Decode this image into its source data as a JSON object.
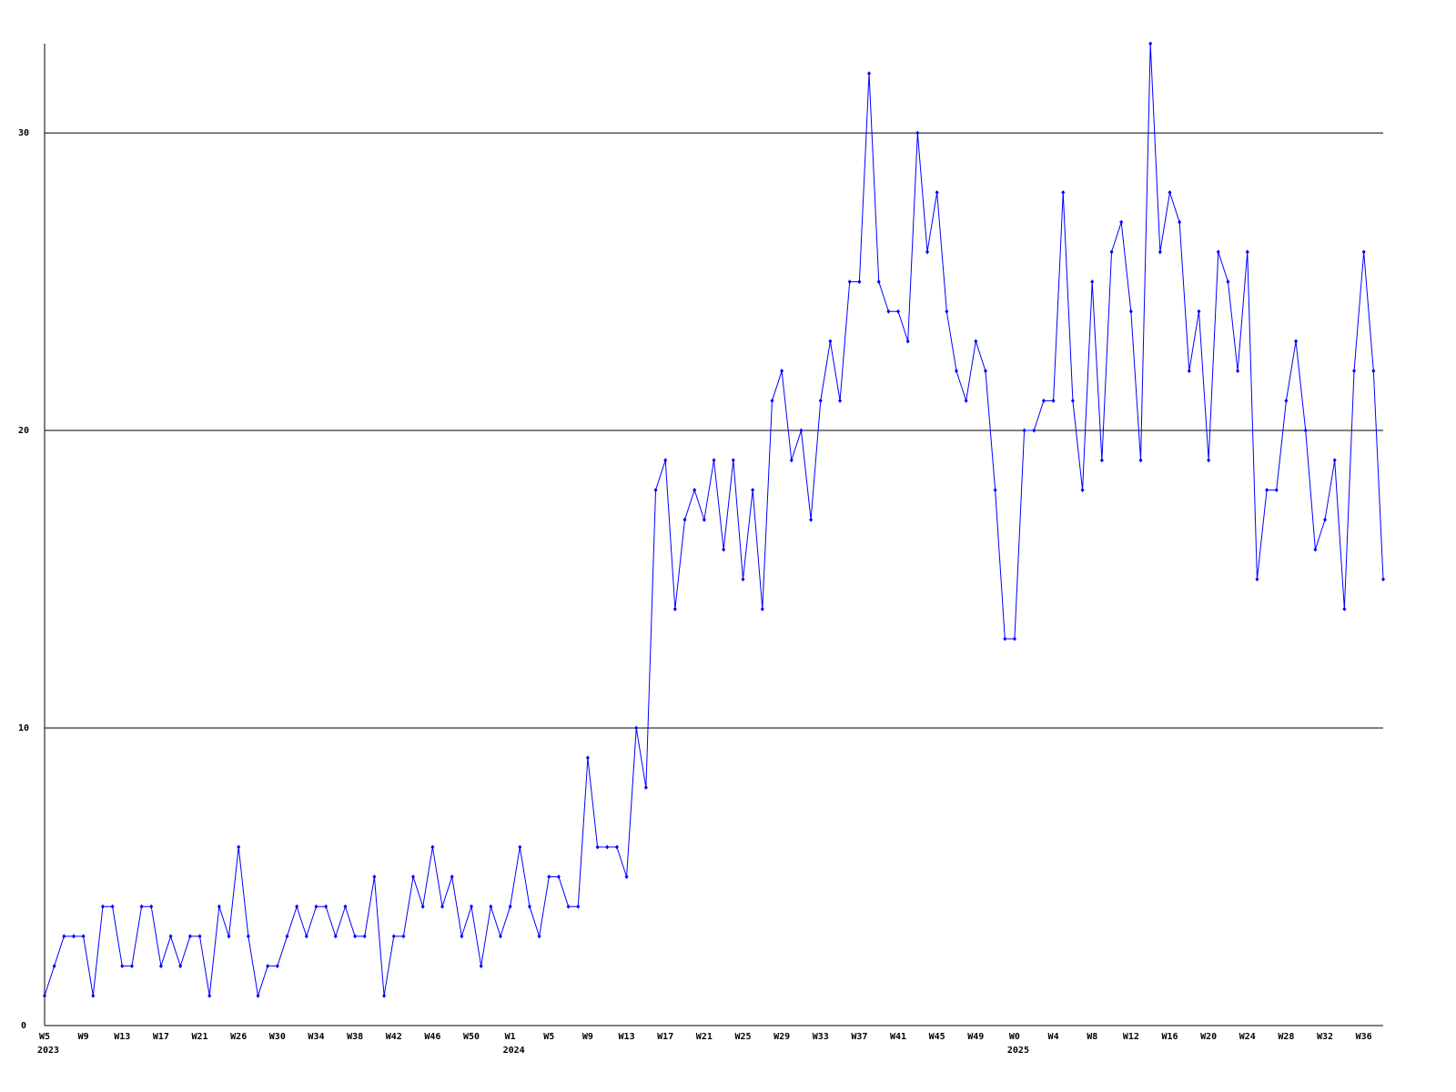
{
  "chart_data": {
    "type": "line",
    "categories": [
      "W5",
      null,
      null,
      null,
      "W9",
      null,
      null,
      null,
      "W13",
      null,
      null,
      null,
      "W17",
      null,
      null,
      null,
      "W21",
      null,
      null,
      null,
      "W26",
      null,
      null,
      null,
      "W30",
      null,
      null,
      null,
      "W34",
      null,
      null,
      null,
      "W38",
      null,
      null,
      null,
      "W42",
      null,
      null,
      null,
      "W46",
      null,
      null,
      null,
      "W50",
      null,
      null,
      null,
      "W1",
      null,
      null,
      null,
      "W5",
      null,
      null,
      null,
      "W9",
      null,
      null,
      null,
      "W13",
      null,
      null,
      null,
      "W17",
      null,
      null,
      null,
      "W21",
      null,
      null,
      null,
      "W25",
      null,
      null,
      null,
      "W29",
      null,
      null,
      null,
      "W33",
      null,
      null,
      null,
      "W37",
      null,
      null,
      null,
      "W41",
      null,
      null,
      null,
      "W45",
      null,
      null,
      null,
      "W49",
      null,
      null,
      null,
      "W0",
      null,
      null,
      null,
      "W4",
      null,
      null,
      null,
      "W8",
      null,
      null,
      null,
      "W12",
      null,
      null,
      null,
      "W16",
      null,
      null,
      null,
      "W20",
      null,
      null,
      null,
      "W24",
      null,
      null,
      null,
      "W28",
      null,
      null,
      null,
      "W32",
      null,
      null,
      null,
      "W36",
      null,
      null
    ],
    "category_years": [
      "2023",
      null,
      null,
      null,
      null,
      null,
      null,
      null,
      null,
      null,
      null,
      null,
      null,
      null,
      null,
      null,
      null,
      null,
      null,
      null,
      null,
      null,
      null,
      null,
      null,
      null,
      null,
      null,
      null,
      null,
      null,
      null,
      null,
      null,
      null,
      null,
      null,
      null,
      null,
      null,
      null,
      null,
      null,
      null,
      null,
      null,
      null,
      null,
      "2024",
      null,
      null,
      null,
      null,
      null,
      null,
      null,
      null,
      null,
      null,
      null,
      null,
      null,
      null,
      null,
      null,
      null,
      null,
      null,
      null,
      null,
      null,
      null,
      null,
      null,
      null,
      null,
      null,
      null,
      null,
      null,
      null,
      null,
      null,
      null,
      null,
      null,
      null,
      null,
      null,
      null,
      null,
      null,
      null,
      null,
      null,
      null,
      null,
      null,
      null,
      null,
      "2025",
      null,
      null,
      null,
      null,
      null,
      null,
      null,
      null,
      null,
      null,
      null,
      null,
      null,
      null,
      null,
      null,
      null,
      null,
      null,
      null,
      null,
      null,
      null,
      null,
      null,
      null,
      null,
      null,
      null,
      null,
      null,
      null,
      null,
      null,
      null,
      null,
      null,
      null
    ],
    "values": [
      1,
      2,
      3,
      3,
      3,
      1,
      4,
      4,
      2,
      2,
      4,
      4,
      2,
      3,
      2,
      3,
      3,
      1,
      4,
      3,
      6,
      3,
      1,
      2,
      2,
      3,
      4,
      3,
      4,
      4,
      3,
      4,
      3,
      3,
      5,
      1,
      3,
      3,
      5,
      4,
      6,
      4,
      5,
      3,
      4,
      2,
      4,
      3,
      4,
      6,
      4,
      3,
      5,
      5,
      4,
      4,
      9,
      6,
      6,
      6,
      5,
      10,
      8,
      18,
      19,
      14,
      17,
      18,
      17,
      19,
      16,
      19,
      15,
      18,
      14,
      21,
      22,
      19,
      20,
      17,
      21,
      23,
      21,
      25,
      25,
      32,
      25,
      24,
      24,
      23,
      30,
      26,
      28,
      24,
      22,
      21,
      23,
      22,
      18,
      13,
      13,
      20,
      20,
      21,
      21,
      28,
      21,
      18,
      25,
      19,
      26,
      27,
      24,
      19,
      33,
      26,
      28,
      27,
      22,
      24,
      19,
      26,
      25,
      22,
      26,
      15,
      18,
      18,
      21,
      23,
      20,
      16,
      17,
      19,
      14,
      22,
      26,
      22,
      15
    ],
    "color": "#0000ff",
    "ylim": [
      0,
      33
    ],
    "yticks": [
      0,
      10,
      20,
      30
    ],
    "grid": true
  }
}
